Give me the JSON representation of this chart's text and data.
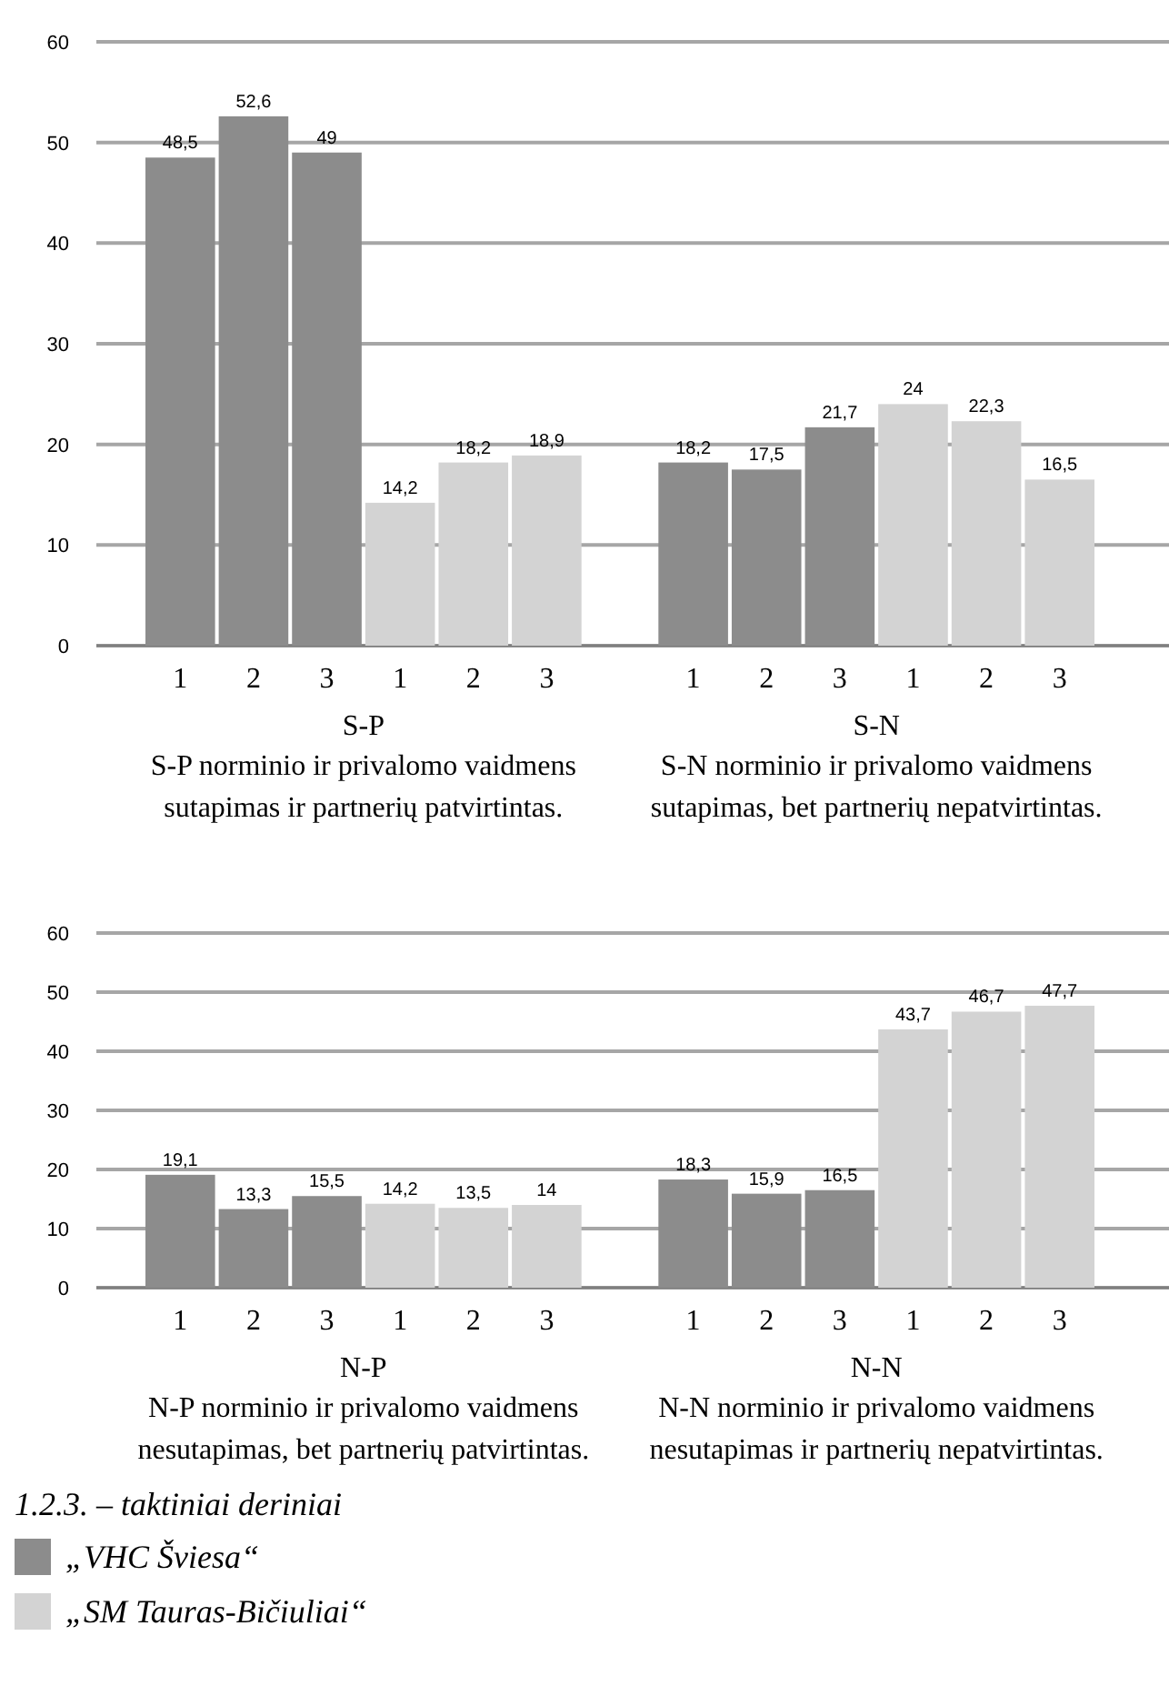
{
  "chart_data": [
    {
      "type": "bar",
      "categories": [
        "1",
        "2",
        "3",
        "1",
        "2",
        "3",
        null,
        "1",
        "2",
        "3",
        "1",
        "2",
        "3"
      ],
      "series": [
        {
          "color": "#8c8c8c",
          "values": [
            48.5,
            52.6,
            49,
            null,
            null,
            null,
            null,
            18.2,
            17.5,
            21.7,
            null,
            null,
            null
          ],
          "value_labels": [
            "48,5",
            "52,6",
            "49",
            null,
            null,
            null,
            null,
            "18,2",
            "17,5",
            "21,7",
            null,
            null,
            null
          ]
        },
        {
          "color": "#d3d3d3",
          "values": [
            null,
            null,
            null,
            14.2,
            18.2,
            18.9,
            null,
            null,
            null,
            null,
            24,
            22.3,
            16.5
          ],
          "value_labels": [
            null,
            null,
            null,
            "14,2",
            "18,2",
            "18,9",
            null,
            null,
            null,
            null,
            "24",
            "22,3",
            "16,5"
          ]
        }
      ],
      "ylim": [
        0,
        60
      ],
      "yticks": [
        0,
        10,
        20,
        30,
        40,
        50,
        60
      ],
      "grid": "y",
      "annotations": [
        "S-P",
        "S-P norminio ir privalomo vaidmens sutapimas ir partnerių patvirtintas.",
        "S-N",
        "S-N norminio ir privalomo vaidmens sutapimas, bet partnerių nepatvirtintas."
      ]
    },
    {
      "type": "bar",
      "categories": [
        "1",
        "2",
        "3",
        "1",
        "2",
        "3",
        null,
        "1",
        "2",
        "3",
        "1",
        "2",
        "3"
      ],
      "series": [
        {
          "name": "„VHC Šviesa“",
          "color": "#8c8c8c",
          "values": [
            19.1,
            13.3,
            15.5,
            null,
            null,
            null,
            null,
            18.3,
            15.9,
            16.5,
            null,
            null,
            null
          ],
          "value_labels": [
            "19,1",
            "13,3",
            "15,5",
            null,
            null,
            null,
            null,
            "18,3",
            "15,9",
            "16,5",
            null,
            null,
            null
          ]
        },
        {
          "name": "„SM Tauras-Bičiuliai“",
          "color": "#d3d3d3",
          "values": [
            null,
            null,
            null,
            14.2,
            13.5,
            14,
            null,
            null,
            null,
            null,
            43.7,
            46.7,
            47.7
          ],
          "value_labels": [
            null,
            null,
            null,
            "14,2",
            "13,5",
            "14",
            null,
            null,
            null,
            null,
            "43,7",
            "46,7",
            "47,7"
          ]
        }
      ],
      "ylim": [
        0,
        60
      ],
      "yticks": [
        0,
        10,
        20,
        30,
        40,
        50,
        60
      ],
      "grid": "y",
      "legend": "bottom left",
      "legend_title": "1.2.3. – taktiniai deriniai",
      "annotations": [
        "N-P",
        "N-P norminio ir privalomo vaidmens nesutapimas, bet partnerių patvirtintas.",
        "N-N",
        "N-N norminio ir privalomo vaidmens nesutapimas ir partnerių nepatvirtintas."
      ]
    }
  ]
}
